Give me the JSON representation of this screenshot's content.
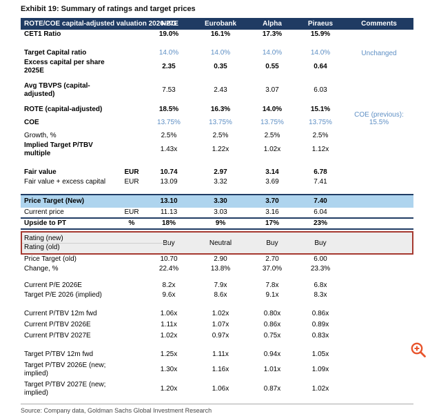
{
  "title": "Exhibit 19: Summary of ratings and target prices",
  "colors": {
    "header_bg": "#1f3b63",
    "highlight_row_bg": "#aed4ee",
    "blue_text": "#5e8fc4",
    "rating_border": "#a5382f",
    "rating_bg": "#ededed",
    "accent_icon": "#e8542c"
  },
  "table": {
    "header_label": "ROTE/COE capital-adjusted valuation 2026-27E",
    "columns": [
      "NBG",
      "Eurobank",
      "Alpha",
      "Piraeus",
      "Comments"
    ],
    "rows_top": [
      {
        "label": "CET1 Ratio",
        "unit": "",
        "values": [
          "19.0%",
          "16.1%",
          "17.3%",
          "15.9%"
        ],
        "comment": "",
        "lb": 1,
        "vb": 1
      },
      {
        "label": "Target Capital ratio",
        "unit": "",
        "values": [
          "14.0%",
          "14.0%",
          "14.0%",
          "14.0%"
        ],
        "comment": "Unchanged",
        "lb": 1,
        "blue": 1,
        "cblue": 1,
        "gap": "l"
      },
      {
        "label": "Excess capital per share 2025E",
        "unit": "",
        "values": [
          "2.35",
          "0.35",
          "0.55",
          "0.64"
        ],
        "comment": "",
        "lb": 1,
        "vb": 1
      },
      {
        "label": "Avg TBVPS (capital-adjusted)",
        "unit": "",
        "values": [
          "7.53",
          "2.43",
          "3.07",
          "6.03"
        ],
        "comment": "",
        "lb": 1,
        "gap": "s"
      },
      {
        "label": "ROTE (capital-adjusted)",
        "unit": "",
        "values": [
          "18.5%",
          "16.3%",
          "14.0%",
          "15.1%"
        ],
        "comment": "",
        "lb": 1,
        "vb": 1,
        "gap": "s"
      },
      {
        "label": "COE",
        "unit": "",
        "values": [
          "13.75%",
          "13.75%",
          "13.75%",
          "13.75%"
        ],
        "comment": "COE (previous):",
        "comment2": "15.5%",
        "lb": 1,
        "blue": 1,
        "cblue": 1
      },
      {
        "label": "Growth, %",
        "unit": "",
        "values": [
          "2.5%",
          "2.5%",
          "2.5%",
          "2.5%"
        ],
        "comment": ""
      },
      {
        "label": "Implied Target P/TBV multiple",
        "unit": "",
        "values": [
          "1.43x",
          "1.22x",
          "1.02x",
          "1.12x"
        ],
        "comment": "",
        "lb": 1
      },
      {
        "label": "Fair value",
        "unit": "EUR",
        "values": [
          "10.74",
          "2.97",
          "3.14",
          "6.78"
        ],
        "comment": "",
        "lb": 1,
        "vb": 1,
        "ub": 1,
        "gap": "l"
      },
      {
        "label": "Fair value + excess capital",
        "unit": "EUR",
        "values": [
          "13.09",
          "3.32",
          "3.69",
          "7.41"
        ],
        "comment": ""
      },
      {
        "label": "Price Target (New)",
        "unit": "",
        "values": [
          "13.10",
          "3.30",
          "3.70",
          "7.40"
        ],
        "comment": "",
        "lb": 1,
        "vb": 1,
        "hl": 1,
        "gap": "m"
      },
      {
        "label": "Current price",
        "unit": "EUR",
        "values": [
          "11.13",
          "3.03",
          "3.16",
          "6.04"
        ],
        "comment": ""
      },
      {
        "label": "Upside to PT",
        "unit": "%",
        "values": [
          "18%",
          "9%",
          "17%",
          "23%"
        ],
        "comment": "",
        "lb": 1,
        "vb": 1,
        "ub": 1,
        "rt": 1,
        "rb": 1
      }
    ],
    "rating_box": {
      "labels": [
        "Rating (new)",
        "Rating (old)"
      ],
      "values": [
        "Buy",
        "Neutral",
        "Buy",
        "Buy"
      ]
    },
    "rows_bottom": [
      {
        "label": "Price Target (old)",
        "unit": "",
        "values": [
          "10.70",
          "2.90",
          "2.70",
          "6.00"
        ],
        "comment": ""
      },
      {
        "label": "Change, %",
        "unit": "",
        "values": [
          "22.4%",
          "13.8%",
          "37.0%",
          "23.3%"
        ],
        "comment": ""
      },
      {
        "label": "Current P/E 2026E",
        "unit": "",
        "values": [
          "8.2x",
          "7.9x",
          "7.8x",
          "6.8x"
        ],
        "comment": "",
        "gap": "m"
      },
      {
        "label": "Target P/E 2026 (implied)",
        "unit": "",
        "values": [
          "9.6x",
          "8.6x",
          "9.1x",
          "8.3x"
        ],
        "comment": ""
      },
      {
        "label": "Current P/TBV 12m fwd",
        "unit": "",
        "values": [
          "1.06x",
          "1.02x",
          "0.80x",
          "0.86x"
        ],
        "comment": "",
        "gap": "l"
      },
      {
        "label": "Current P/TBV 2026E",
        "unit": "",
        "values": [
          "1.11x",
          "1.07x",
          "0.86x",
          "0.89x"
        ],
        "comment": "",
        "gap": "xs"
      },
      {
        "label": "Current P/TBV 2027E",
        "unit": "",
        "values": [
          "1.02x",
          "0.97x",
          "0.75x",
          "0.83x"
        ],
        "comment": "",
        "gap": "xs"
      },
      {
        "label": "Target P/TBV 12m fwd",
        "unit": "",
        "values": [
          "1.25x",
          "1.11x",
          "0.94x",
          "1.05x"
        ],
        "comment": "",
        "gap": "l"
      },
      {
        "label": "Target P/TBV 2026E (new; implied)",
        "unit": "",
        "values": [
          "1.30x",
          "1.16x",
          "1.01x",
          "1.09x"
        ],
        "comment": "",
        "gap": "xs"
      },
      {
        "label": "Target P/TBV 2027E (new; implied)",
        "unit": "",
        "values": [
          "1.20x",
          "1.06x",
          "0.87x",
          "1.02x"
        ],
        "comment": "",
        "gap": "xs"
      }
    ]
  },
  "footer": {
    "source": "Source: Company data, Goldman Sachs Global Investment Research"
  },
  "icons": {
    "zoom": "zoom-in-icon"
  }
}
